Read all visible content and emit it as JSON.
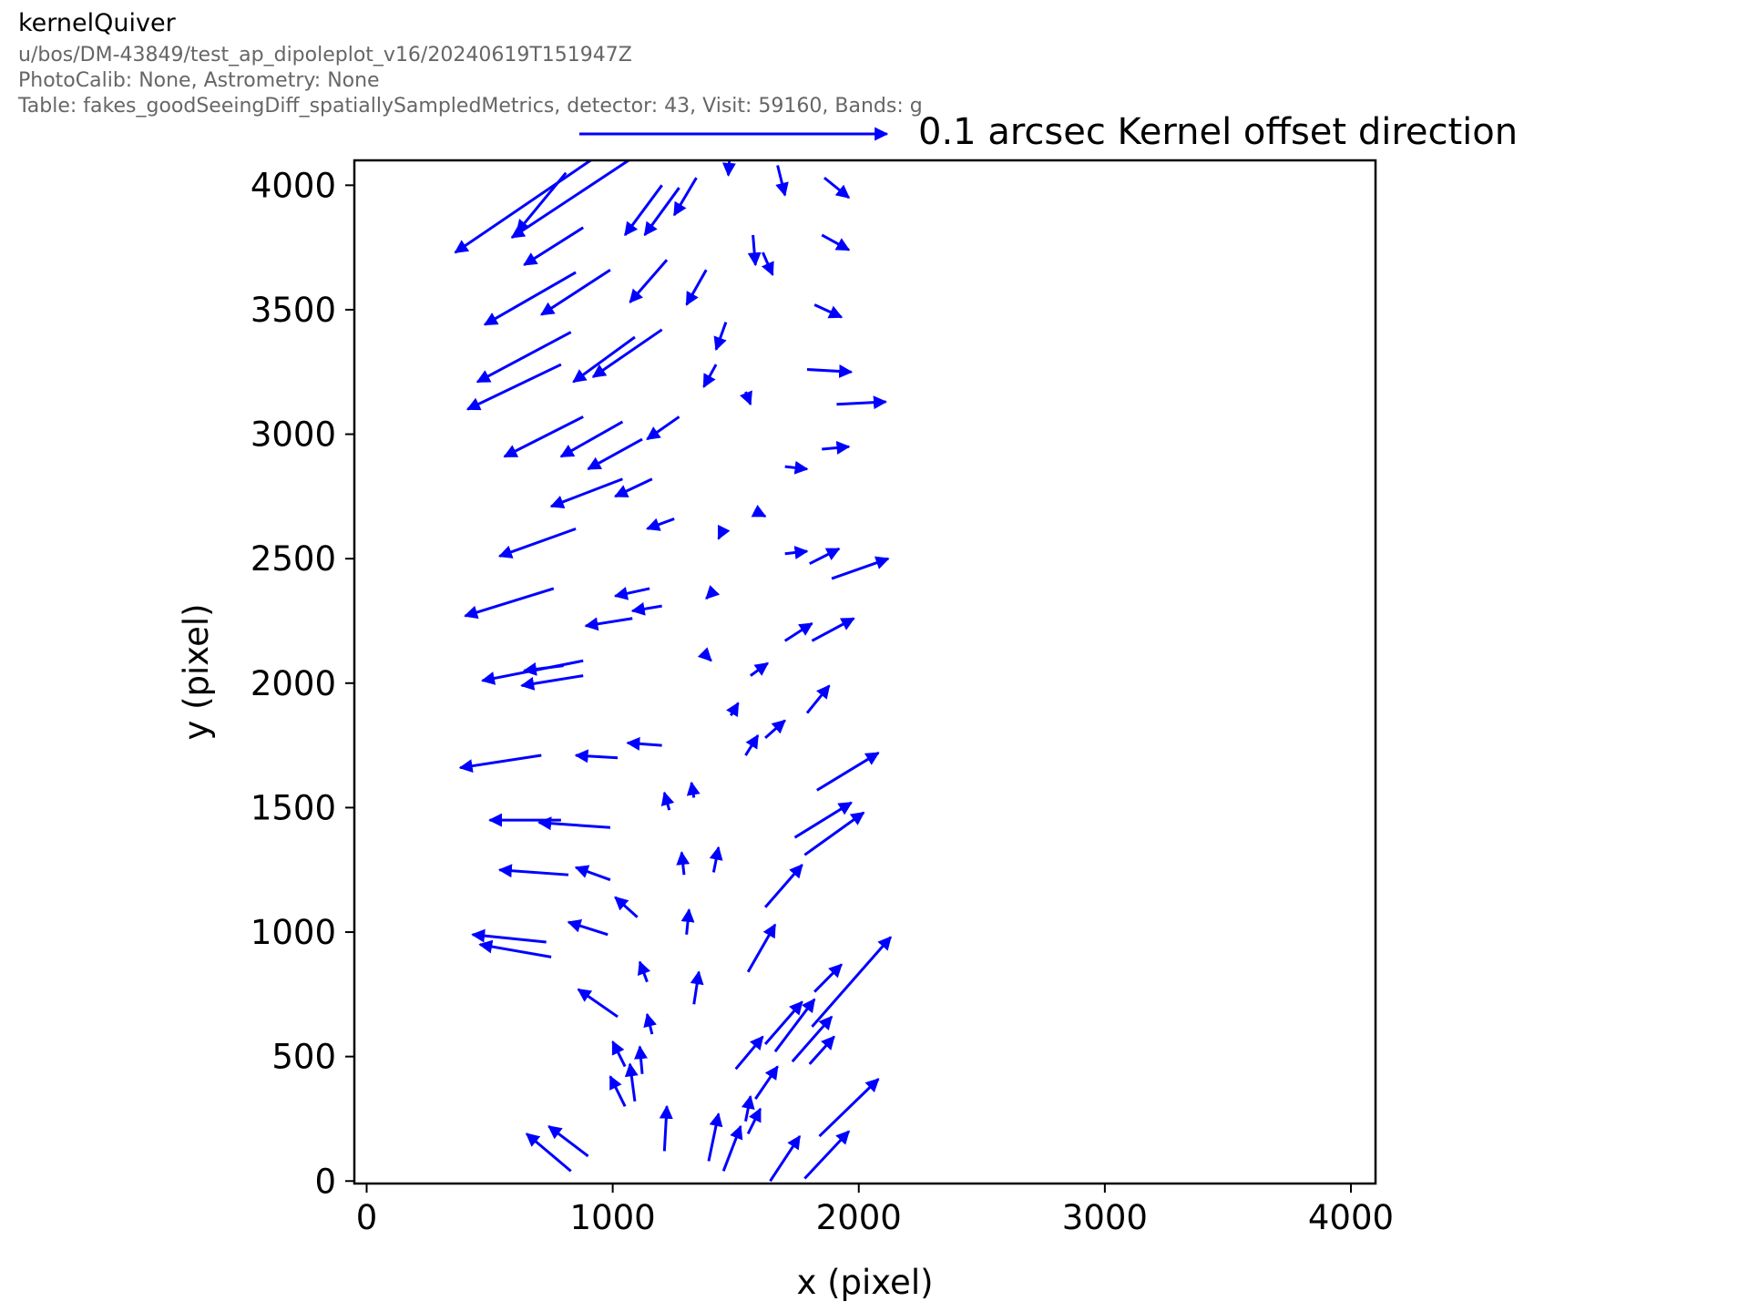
{
  "header": {
    "title": "kernelQuiver",
    "lines": [
      "u/bos/DM-43849/test_ap_dipoleplot_v16/20240619T151947Z",
      "PhotoCalib: None, Astrometry: None",
      "Table: fakes_goodSeeingDiff_spatiallySampledMetrics, detector: 43, Visit: 59160, Bands: g"
    ]
  },
  "chart_data": {
    "type": "quiver",
    "title": "kernelQuiver",
    "xlabel": "x (pixel)",
    "ylabel": "y (pixel)",
    "xlim": [
      -50,
      4100
    ],
    "ylim": [
      -10,
      4100
    ],
    "xticks": [
      0,
      1000,
      2000,
      3000,
      4000
    ],
    "yticks": [
      0,
      500,
      1000,
      1500,
      2000,
      2500,
      3000,
      3500,
      4000
    ],
    "tick_labels_x": [
      "0",
      "1000",
      "2000",
      "3000",
      "4000"
    ],
    "tick_labels_y": [
      "0",
      "500",
      "1000",
      "1500",
      "2000",
      "2500",
      "3000",
      "3500",
      "4000"
    ],
    "grid": false,
    "color": "#0000ff",
    "key": {
      "label": "0.1 arcsec Kernel offset direction",
      "length": 1250
    },
    "arrows": [
      [
        1080,
        4110,
        590,
        3790
      ],
      [
        940,
        4120,
        360,
        3730
      ],
      [
        810,
        4050,
        610,
        3810
      ],
      [
        880,
        3830,
        640,
        3680
      ],
      [
        1200,
        4000,
        1050,
        3800
      ],
      [
        1340,
        4030,
        1250,
        3880
      ],
      [
        1270,
        3990,
        1130,
        3800
      ],
      [
        1480,
        4190,
        1470,
        4040
      ],
      [
        1670,
        4080,
        1700,
        3960
      ],
      [
        1860,
        4030,
        1960,
        3950
      ],
      [
        1570,
        3800,
        1580,
        3680
      ],
      [
        1610,
        3730,
        1650,
        3640
      ],
      [
        1850,
        3800,
        1960,
        3740
      ],
      [
        850,
        3650,
        480,
        3440
      ],
      [
        990,
        3660,
        710,
        3480
      ],
      [
        1220,
        3700,
        1070,
        3530
      ],
      [
        1380,
        3660,
        1300,
        3520
      ],
      [
        1820,
        3520,
        1930,
        3470
      ],
      [
        1460,
        3450,
        1420,
        3340
      ],
      [
        830,
        3410,
        450,
        3210
      ],
      [
        1090,
        3390,
        840,
        3210
      ],
      [
        1200,
        3420,
        920,
        3230
      ],
      [
        1790,
        3260,
        1970,
        3250
      ],
      [
        790,
        3280,
        410,
        3100
      ],
      [
        1420,
        3280,
        1370,
        3190
      ],
      [
        1540,
        3170,
        1560,
        3120
      ],
      [
        1910,
        3120,
        2110,
        3130
      ],
      [
        880,
        3070,
        560,
        2910
      ],
      [
        1040,
        3050,
        790,
        2910
      ],
      [
        1270,
        3070,
        1140,
        2980
      ],
      [
        1120,
        2980,
        900,
        2860
      ],
      [
        1850,
        2940,
        1960,
        2950
      ],
      [
        1700,
        2870,
        1790,
        2860
      ],
      [
        1040,
        2820,
        750,
        2710
      ],
      [
        1160,
        2820,
        1010,
        2750
      ],
      [
        1250,
        2660,
        1140,
        2620
      ],
      [
        1450,
        2620,
        1430,
        2580
      ],
      [
        1580,
        2690,
        1620,
        2670
      ],
      [
        1700,
        2520,
        1790,
        2530
      ],
      [
        1800,
        2480,
        1920,
        2540
      ],
      [
        1890,
        2420,
        2120,
        2500
      ],
      [
        850,
        2620,
        540,
        2510
      ],
      [
        760,
        2380,
        400,
        2270
      ],
      [
        1150,
        2380,
        1010,
        2350
      ],
      [
        1200,
        2310,
        1080,
        2290
      ],
      [
        1390,
        2350,
        1380,
        2340
      ],
      [
        1080,
        2260,
        890,
        2230
      ],
      [
        1700,
        2170,
        1810,
        2240
      ],
      [
        1810,
        2170,
        1980,
        2260
      ],
      [
        880,
        2090,
        470,
        2010
      ],
      [
        800,
        2070,
        640,
        2050
      ],
      [
        880,
        2030,
        630,
        1990
      ],
      [
        1370,
        2120,
        1400,
        2090
      ],
      [
        1560,
        2030,
        1630,
        2080
      ],
      [
        1480,
        1870,
        1510,
        1920
      ],
      [
        1620,
        1780,
        1700,
        1850
      ],
      [
        1790,
        1880,
        1880,
        1990
      ],
      [
        1200,
        1750,
        1060,
        1760
      ],
      [
        1020,
        1700,
        850,
        1710
      ],
      [
        710,
        1710,
        380,
        1660
      ],
      [
        1540,
        1710,
        1590,
        1790
      ],
      [
        1830,
        1570,
        2080,
        1720
      ],
      [
        990,
        1420,
        700,
        1440
      ],
      [
        790,
        1450,
        500,
        1450
      ],
      [
        1230,
        1490,
        1210,
        1560
      ],
      [
        1330,
        1540,
        1320,
        1600
      ],
      [
        1740,
        1380,
        1970,
        1520
      ],
      [
        1780,
        1310,
        2020,
        1480
      ],
      [
        820,
        1230,
        540,
        1250
      ],
      [
        990,
        1210,
        850,
        1260
      ],
      [
        1290,
        1230,
        1280,
        1320
      ],
      [
        1410,
        1240,
        1430,
        1340
      ],
      [
        1620,
        1100,
        1770,
        1270
      ],
      [
        1100,
        1060,
        1010,
        1140
      ],
      [
        1300,
        990,
        1310,
        1090
      ],
      [
        1550,
        840,
        1660,
        1030
      ],
      [
        730,
        960,
        430,
        990
      ],
      [
        750,
        900,
        460,
        950
      ],
      [
        980,
        990,
        820,
        1040
      ],
      [
        1140,
        800,
        1110,
        880
      ],
      [
        1330,
        710,
        1350,
        840
      ],
      [
        1820,
        760,
        1930,
        870
      ],
      [
        1620,
        550,
        1770,
        720
      ],
      [
        1020,
        660,
        860,
        770
      ],
      [
        1810,
        620,
        2130,
        980
      ],
      [
        1050,
        460,
        1000,
        560
      ],
      [
        1120,
        430,
        1110,
        540
      ],
      [
        1160,
        590,
        1140,
        670
      ],
      [
        1500,
        450,
        1610,
        580
      ],
      [
        1050,
        300,
        990,
        420
      ],
      [
        1090,
        320,
        1070,
        470
      ],
      [
        1660,
        520,
        1820,
        730
      ],
      [
        1580,
        330,
        1670,
        460
      ],
      [
        1730,
        480,
        1890,
        660
      ],
      [
        1800,
        470,
        1900,
        580
      ],
      [
        1210,
        120,
        1220,
        300
      ],
      [
        1390,
        80,
        1430,
        270
      ],
      [
        1450,
        40,
        1520,
        220
      ],
      [
        1550,
        190,
        1600,
        290
      ],
      [
        1540,
        240,
        1560,
        340
      ],
      [
        1840,
        180,
        2080,
        410
      ],
      [
        830,
        40,
        650,
        190
      ],
      [
        900,
        100,
        740,
        220
      ],
      [
        1640,
        0,
        1760,
        180
      ],
      [
        1780,
        10,
        1960,
        200
      ]
    ]
  }
}
